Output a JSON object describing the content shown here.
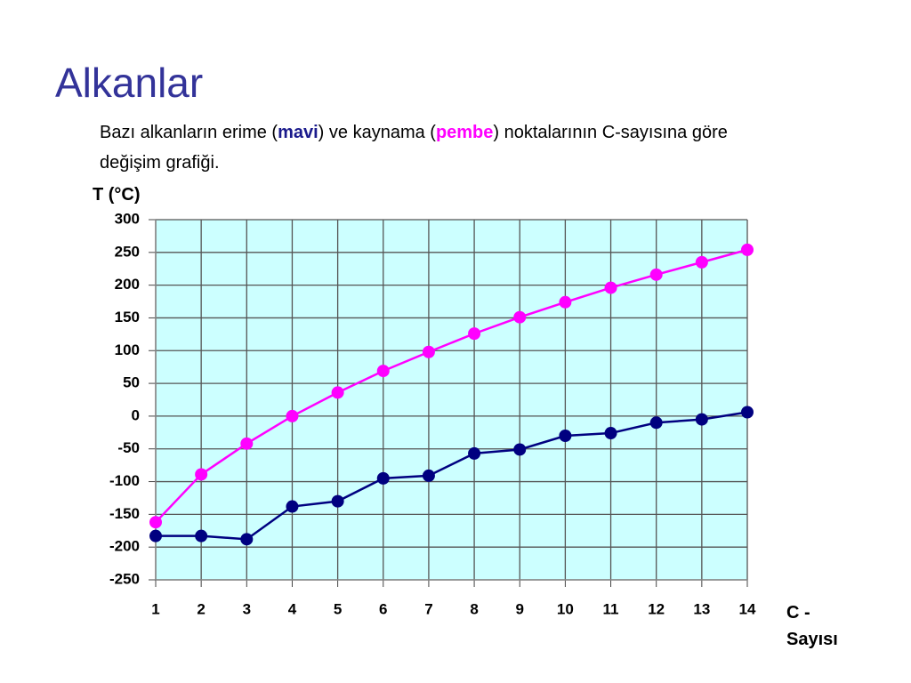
{
  "chart_data": {
    "type": "line",
    "title": "Alkanlar",
    "subtitle": [
      "Bazı alkanların erime (",
      "mavi",
      ") ve kaynama (",
      "pembe",
      ") noktalarının C-sayısına göre değişim grafiği."
    ],
    "y_label": "T (°C)",
    "x_label": "C - Sayısı",
    "x": [
      1,
      2,
      3,
      4,
      5,
      6,
      7,
      8,
      9,
      10,
      11,
      12,
      13,
      14
    ],
    "xlim": [
      1,
      14
    ],
    "xticks": [
      1,
      2,
      3,
      4,
      5,
      6,
      7,
      8,
      9,
      10,
      11,
      12,
      13,
      14
    ],
    "ylim": [
      -250,
      300
    ],
    "yticks": [
      300,
      250,
      200,
      150,
      100,
      50,
      0,
      -50,
      -100,
      -150,
      -200,
      -250
    ],
    "grid": true,
    "series": [
      {
        "color": "#ff00ff",
        "values": [
          -162,
          -89,
          -42,
          0,
          36,
          69,
          98,
          126,
          151,
          174,
          196,
          216,
          235,
          254
        ]
      },
      {
        "color": "#000080",
        "values": [
          -183,
          -183,
          -188,
          -138,
          -130,
          -95,
          -91,
          -57,
          -51,
          -30,
          -26,
          -10,
          -5,
          6
        ]
      }
    ]
  }
}
